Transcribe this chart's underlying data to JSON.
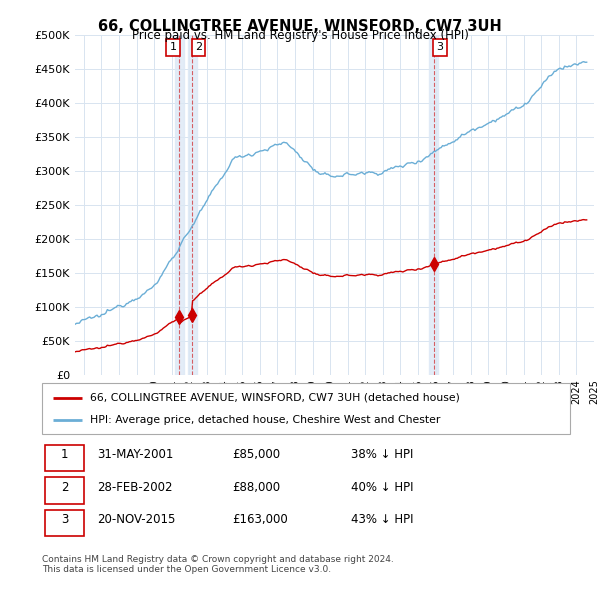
{
  "title": "66, COLLINGTREE AVENUE, WINSFORD, CW7 3UH",
  "subtitle": "Price paid vs. HM Land Registry's House Price Index (HPI)",
  "ylim": [
    0,
    500000
  ],
  "yticks": [
    0,
    50000,
    100000,
    150000,
    200000,
    250000,
    300000,
    350000,
    400000,
    450000,
    500000
  ],
  "ytick_labels": [
    "£0",
    "£50K",
    "£100K",
    "£150K",
    "£200K",
    "£250K",
    "£300K",
    "£350K",
    "£400K",
    "£450K",
    "£500K"
  ],
  "hpi_color": "#6baed6",
  "price_color": "#cc0000",
  "vline_color": "#cc0000",
  "sale_dates": [
    2001.42,
    2002.17,
    2015.89
  ],
  "sale_prices": [
    85000,
    88000,
    163000
  ],
  "sale_labels": [
    "1",
    "2",
    "3"
  ],
  "legend_price_label": "66, COLLINGTREE AVENUE, WINSFORD, CW7 3UH (detached house)",
  "legend_hpi_label": "HPI: Average price, detached house, Cheshire West and Chester",
  "table_rows": [
    [
      "1",
      "31-MAY-2001",
      "£85,000",
      "38% ↓ HPI"
    ],
    [
      "2",
      "28-FEB-2002",
      "£88,000",
      "40% ↓ HPI"
    ],
    [
      "3",
      "20-NOV-2015",
      "£163,000",
      "43% ↓ HPI"
    ]
  ],
  "footer": "Contains HM Land Registry data © Crown copyright and database right 2024.\nThis data is licensed under the Open Government Licence v3.0.",
  "grid_color": "#d8e4f0",
  "shade_color": "#dce8f5",
  "xmin": 1995.5,
  "xmax": 2025.0
}
